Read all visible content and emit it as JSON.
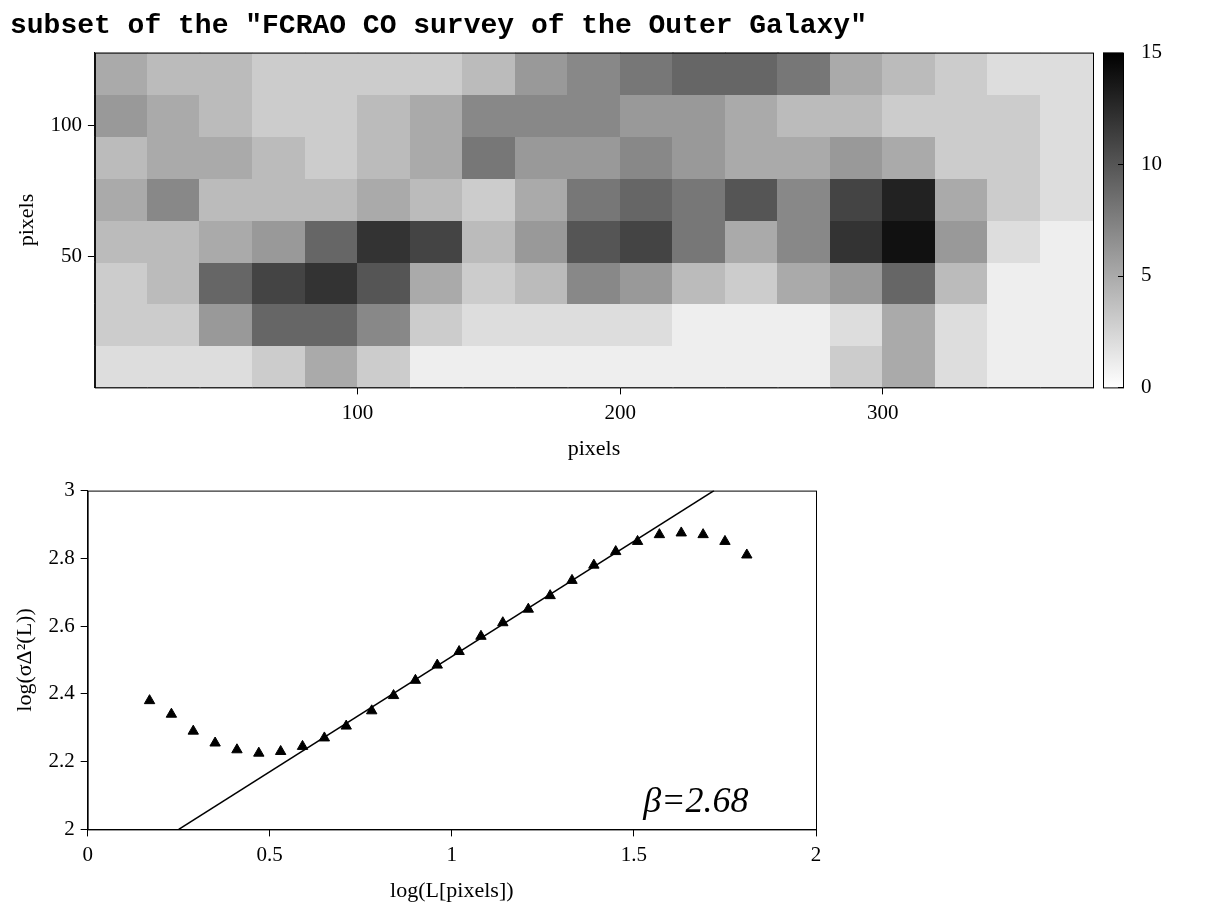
{
  "chart_data": [
    {
      "type": "heatmap",
      "title": "subset of the \"FCRAO CO survey of the Outer Galaxy\"",
      "xlabel": "pixels",
      "ylabel": "pixels",
      "xlim": [
        0,
        380
      ],
      "ylim": [
        0,
        128
      ],
      "xticks": [
        100,
        200,
        300
      ],
      "yticks": [
        50,
        100
      ],
      "grid": false,
      "color": "#000000",
      "x_edges": [
        0,
        20,
        40,
        60,
        80,
        100,
        120,
        140,
        160,
        180,
        200,
        220,
        240,
        260,
        280,
        300,
        320,
        340,
        360,
        380
      ],
      "y_edges": [
        0,
        16,
        32,
        48,
        64,
        80,
        96,
        112,
        128
      ],
      "cells": [
        [
          2,
          2,
          2,
          3,
          5,
          3,
          1,
          1,
          1,
          1,
          1,
          1,
          1,
          1,
          3,
          5,
          2,
          1,
          1
        ],
        [
          3,
          3,
          6,
          9,
          9,
          7,
          3,
          2,
          2,
          2,
          2,
          1,
          1,
          1,
          2,
          5,
          2,
          1,
          1
        ],
        [
          3,
          4,
          9,
          11,
          12,
          10,
          5,
          3,
          4,
          7,
          6,
          4,
          3,
          5,
          6,
          9,
          4,
          1,
          1
        ],
        [
          4,
          4,
          5,
          6,
          9,
          12,
          11,
          4,
          6,
          10,
          11,
          8,
          5,
          7,
          12,
          14,
          6,
          2,
          1
        ],
        [
          5,
          7,
          4,
          4,
          4,
          5,
          4,
          3,
          5,
          8,
          9,
          8,
          10,
          7,
          11,
          13,
          5,
          3,
          2
        ],
        [
          4,
          5,
          5,
          4,
          3,
          4,
          5,
          8,
          6,
          6,
          7,
          6,
          5,
          5,
          6,
          5,
          3,
          3,
          2
        ],
        [
          6,
          5,
          4,
          3,
          3,
          4,
          5,
          7,
          7,
          7,
          6,
          6,
          5,
          4,
          4,
          3,
          3,
          3,
          2
        ],
        [
          5,
          4,
          4,
          3,
          3,
          3,
          3,
          4,
          6,
          7,
          8,
          9,
          9,
          8,
          5,
          4,
          3,
          2,
          2
        ]
      ],
      "colorbar": {
        "range": [
          0,
          15
        ],
        "ticks": [
          0,
          5,
          10,
          15
        ]
      }
    },
    {
      "type": "scatter",
      "xlabel": "log(L[pixels])",
      "ylabel": "log(σΔ²(L))",
      "xlim": [
        0,
        2
      ],
      "ylim": [
        2,
        3
      ],
      "xticks": [
        0,
        0.5,
        1,
        1.5,
        2
      ],
      "yticks": [
        2,
        2.2,
        2.4,
        2.6,
        2.8,
        3
      ],
      "grid": false,
      "series": [
        {
          "type": "scatter",
          "marker": "triangle",
          "color": "#000000",
          "x": [
            0.17,
            0.23,
            0.29,
            0.35,
            0.41,
            0.47,
            0.53,
            0.59,
            0.65,
            0.71,
            0.78,
            0.84,
            0.9,
            0.96,
            1.02,
            1.08,
            1.14,
            1.21,
            1.27,
            1.33,
            1.39,
            1.45,
            1.51,
            1.57,
            1.63,
            1.69,
            1.75,
            1.81
          ],
          "values": [
            2.38,
            2.34,
            2.29,
            2.255,
            2.235,
            2.225,
            2.23,
            2.245,
            2.27,
            2.305,
            2.35,
            2.395,
            2.44,
            2.485,
            2.525,
            2.57,
            2.61,
            2.65,
            2.69,
            2.735,
            2.78,
            2.82,
            2.85,
            2.87,
            2.875,
            2.87,
            2.85,
            2.81
          ]
        },
        {
          "type": "line",
          "line_style": "solid",
          "color": "#000000",
          "x": [
            0.25,
            1.72
          ],
          "values": [
            2.0,
            3.0
          ]
        }
      ],
      "annotations": [
        {
          "text": "β=2.68",
          "x": 1.67,
          "y": 2.08
        }
      ]
    }
  ]
}
